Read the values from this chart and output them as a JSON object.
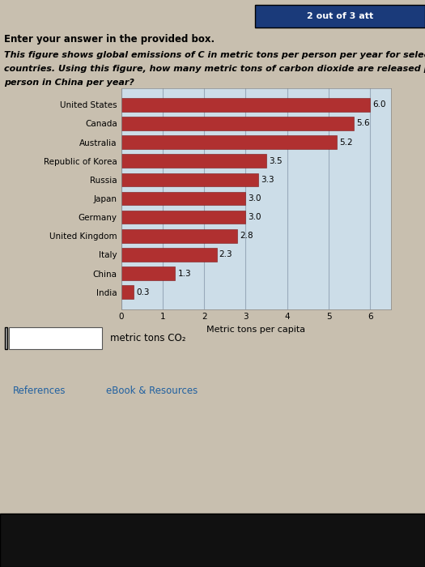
{
  "countries": [
    "United States",
    "Canada",
    "Australia",
    "Republic of Korea",
    "Russia",
    "Japan",
    "Germany",
    "United Kingdom",
    "Italy",
    "China",
    "India"
  ],
  "values": [
    6.0,
    5.6,
    5.2,
    3.5,
    3.3,
    3.0,
    3.0,
    2.8,
    2.3,
    1.3,
    0.3
  ],
  "bar_color": "#b03030",
  "plot_bg": "#ccdde8",
  "page_bg": "#c8bfaf",
  "xlabel": "Metric tons per capita",
  "xlim": [
    0,
    6.5
  ],
  "xticks": [
    0,
    1,
    2,
    3,
    4,
    5,
    6
  ],
  "header_text": "Enter your answer in the provided box.",
  "question_line1": "This figure shows global emissions of C in metric tons per person per year for selected",
  "question_line2": "countries. Using this figure, how many metric tons of carbon dioxide are released per",
  "question_line3": "person in China per year?",
  "badge_text": "2 out of 3 att",
  "badge_color": "#1a3a7a",
  "answer_label": "metric tons CO₂",
  "ref_text": "References",
  "ebook_text": "eBook & Resources",
  "taskbar_color": "#111111",
  "grid_color": "#99aabb",
  "value_fontsize": 7.5,
  "label_fontsize": 7.5,
  "xlabel_fontsize": 8
}
